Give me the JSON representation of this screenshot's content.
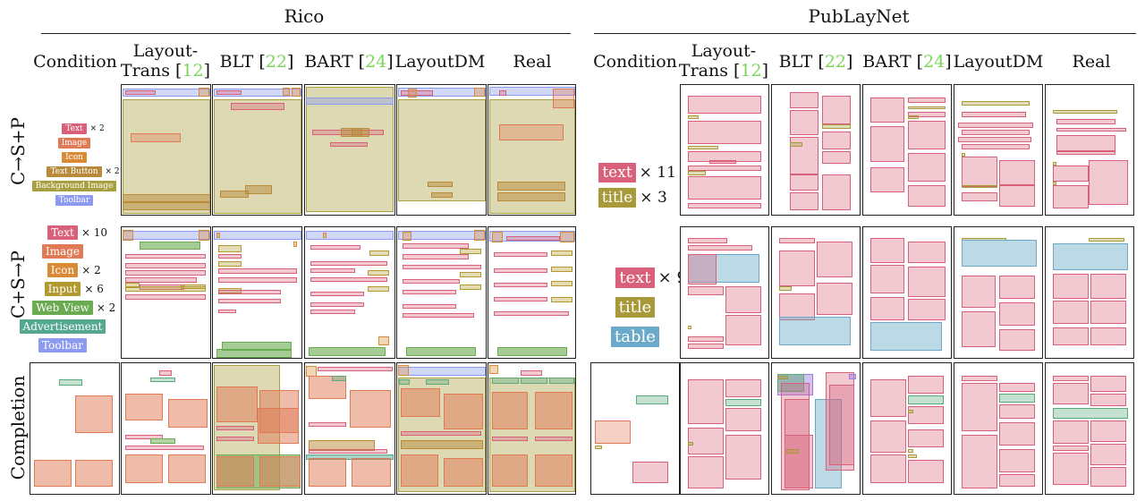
{
  "groups": {
    "rico": "Rico",
    "publaynet": "PubLayNet"
  },
  "columns": {
    "condition": "Condition",
    "layouttrans_line1": "Layout-",
    "layouttrans_line2": "Trans",
    "blt": "BLT",
    "bart": "BART",
    "layoutdm": "LayoutDM",
    "real": "Real",
    "cite_layouttrans": "12",
    "cite_blt": "22",
    "cite_bart": "24"
  },
  "rows": {
    "row1": "C→S+P",
    "row2": "C+S→P",
    "row3": "Completion"
  },
  "rico_conditions": {
    "row1": [
      {
        "label": "Text",
        "mult": "× 2",
        "color": "#d9607a"
      },
      {
        "label": "Image",
        "mult": "",
        "color": "#e07a55"
      },
      {
        "label": "Icon",
        "mult": "",
        "color": "#d98a35"
      },
      {
        "label": "Text Button",
        "mult": "× 2",
        "color": "#b88a3a"
      },
      {
        "label": "Background Image",
        "mult": "",
        "color": "#a8a040"
      },
      {
        "label": "Toolbar",
        "mult": "",
        "color": "#8c9af0"
      }
    ],
    "row2": [
      {
        "label": "Text",
        "mult": "× 10",
        "color": "#d9607a"
      },
      {
        "label": "Image",
        "mult": "",
        "color": "#e07a55"
      },
      {
        "label": "Icon",
        "mult": "× 2",
        "color": "#d98a35"
      },
      {
        "label": "Input",
        "mult": "× 6",
        "color": "#b39a30"
      },
      {
        "label": "Web View",
        "mult": "× 2",
        "color": "#6aaa50"
      },
      {
        "label": "Advertisement",
        "mult": "",
        "color": "#55a890"
      },
      {
        "label": "Toolbar",
        "mult": "",
        "color": "#8c9af0"
      }
    ]
  },
  "pub_conditions": {
    "row1": [
      {
        "label": "text",
        "mult": "× 11",
        "color": "#d9607a"
      },
      {
        "label": "title",
        "mult": "× 3",
        "color": "#a89a3a"
      }
    ],
    "row2": [
      {
        "label": "text",
        "mult": "× 9",
        "color": "#d9607a"
      },
      {
        "label": "title",
        "mult": "",
        "color": "#a89a3a"
      },
      {
        "label": "table",
        "mult": "",
        "color": "#6aaac8"
      }
    ]
  },
  "colors": {
    "text": "#d9607a",
    "image": "#e07a55",
    "icon": "#d98a35",
    "textbutton": "#b88a3a",
    "background": "#a8a040",
    "toolbar": "#8c9af0",
    "input": "#b39a30",
    "webview": "#6aaa50",
    "advert": "#55a890",
    "title": "#a89a3a",
    "table": "#6aaac8",
    "figure": "#9a7ae0",
    "list": "#5aaa7a",
    "cite": "#7cd65a"
  }
}
